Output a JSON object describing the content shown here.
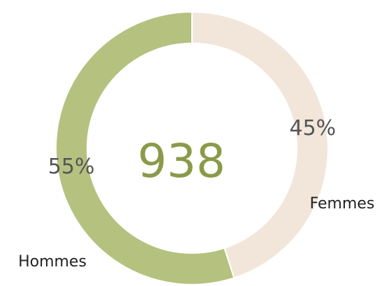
{
  "chart_data": {
    "type": "donut",
    "total": 938,
    "categories": [
      "Femmes",
      "Hommes"
    ],
    "values": [
      45,
      55
    ],
    "value_labels": [
      "45%",
      "55%"
    ],
    "colors": [
      "#f2e6da",
      "#b5c17f"
    ]
  }
}
